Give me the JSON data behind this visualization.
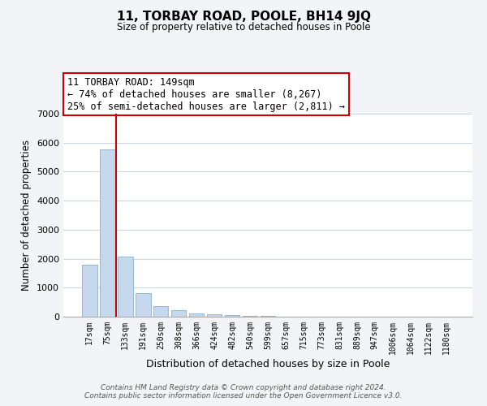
{
  "title": "11, TORBAY ROAD, POOLE, BH14 9JQ",
  "subtitle": "Size of property relative to detached houses in Poole",
  "xlabel": "Distribution of detached houses by size in Poole",
  "ylabel": "Number of detached properties",
  "bar_labels": [
    "17sqm",
    "75sqm",
    "133sqm",
    "191sqm",
    "250sqm",
    "308sqm",
    "366sqm",
    "424sqm",
    "482sqm",
    "540sqm",
    "599sqm",
    "657sqm",
    "715sqm",
    "773sqm",
    "831sqm",
    "889sqm",
    "947sqm",
    "1006sqm",
    "1064sqm",
    "1122sqm",
    "1180sqm"
  ],
  "bar_values": [
    1780,
    5780,
    2070,
    810,
    360,
    230,
    120,
    90,
    50,
    30,
    20,
    10,
    5,
    0,
    0,
    0,
    0,
    0,
    0,
    0,
    0
  ],
  "bar_color": "#c5d8ed",
  "bar_edge_color": "#8ab0cc",
  "vline_x": 1.5,
  "vline_color": "#cc0000",
  "annotation_title": "11 TORBAY ROAD: 149sqm",
  "annotation_line1": "← 74% of detached houses are smaller (8,267)",
  "annotation_line2": "25% of semi-detached houses are larger (2,811) →",
  "annotation_box_color": "#ffffff",
  "annotation_box_edge": "#cc0000",
  "ylim": [
    0,
    7000
  ],
  "yticks": [
    0,
    1000,
    2000,
    3000,
    4000,
    5000,
    6000,
    7000
  ],
  "footer_line1": "Contains HM Land Registry data © Crown copyright and database right 2024.",
  "footer_line2": "Contains public sector information licensed under the Open Government Licence v3.0.",
  "bg_color": "#f2f4f7",
  "plot_bg_color": "#ffffff",
  "grid_color": "#c8d8e8"
}
